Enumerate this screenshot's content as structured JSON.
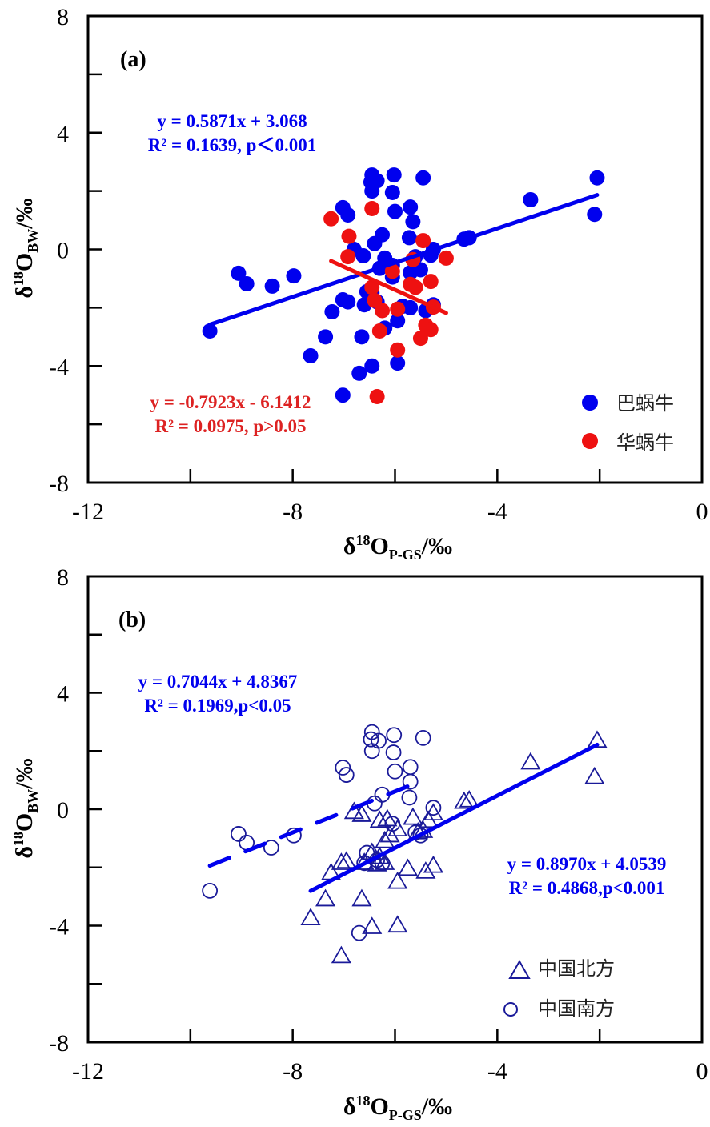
{
  "chart_data": [
    {
      "type": "scatter",
      "panel_label": "(a)",
      "xlabel": {
        "main": "δ",
        "sup": "18",
        "mid": "O",
        "sub": "P-GS",
        "tail": "/‰"
      },
      "ylabel": {
        "main": "δ",
        "sup": "18",
        "mid": "O",
        "sub": "BW",
        "tail": "/‰"
      },
      "xlim": [
        -12,
        0
      ],
      "ylim": [
        -8,
        8
      ],
      "xticks": [
        "-12",
        "-8",
        "-4",
        "0"
      ],
      "xtick_values": [
        -12,
        -8,
        -4,
        0
      ],
      "yticks": [
        "8",
        "4",
        "0",
        "-4",
        "-8"
      ],
      "ytick_values": [
        8,
        4,
        0,
        -4,
        -8
      ],
      "legend_position": "bottom-right",
      "series": [
        {
          "name": "巴蜗牛",
          "color": "#0000ee",
          "marker": "filled-circle",
          "points": [
            [
              -9.62,
              -2.8
            ],
            [
              -9.06,
              -0.82
            ],
            [
              -8.9,
              -1.18
            ],
            [
              -8.4,
              -1.26
            ],
            [
              -7.98,
              -0.91
            ],
            [
              -7.65,
              -3.65
            ],
            [
              -7.36,
              -3.0
            ],
            [
              -7.23,
              -2.14
            ],
            [
              -7.02,
              -1.73
            ],
            [
              -6.92,
              -1.8
            ],
            [
              -7.02,
              -5.0
            ],
            [
              -7.02,
              1.43
            ],
            [
              -6.92,
              1.18
            ],
            [
              -6.8,
              0.0
            ],
            [
              -6.62,
              -0.22
            ],
            [
              -6.45,
              2.55
            ],
            [
              -6.47,
              2.3
            ],
            [
              -6.35,
              2.35
            ],
            [
              -6.02,
              2.55
            ],
            [
              -5.45,
              2.45
            ],
            [
              -6.45,
              2.0
            ],
            [
              -6.05,
              1.95
            ],
            [
              -5.7,
              1.45
            ],
            [
              -6.0,
              1.3
            ],
            [
              -5.65,
              0.95
            ],
            [
              -5.72,
              0.4
            ],
            [
              -6.25,
              0.5
            ],
            [
              -6.4,
              0.2
            ],
            [
              -6.2,
              -0.3
            ],
            [
              -6.05,
              -0.55
            ],
            [
              -5.6,
              -0.25
            ],
            [
              -5.25,
              0.0
            ],
            [
              -5.3,
              -0.2
            ],
            [
              -5.5,
              -0.7
            ],
            [
              -5.7,
              -0.8
            ],
            [
              -6.05,
              -0.95
            ],
            [
              -6.3,
              -0.65
            ],
            [
              -6.55,
              -1.45
            ],
            [
              -6.45,
              -1.5
            ],
            [
              -6.35,
              -1.8
            ],
            [
              -6.6,
              -1.9
            ],
            [
              -5.85,
              -1.95
            ],
            [
              -5.7,
              -2.0
            ],
            [
              -5.4,
              -2.1
            ],
            [
              -5.25,
              -1.9
            ],
            [
              -5.95,
              -2.45
            ],
            [
              -6.65,
              -3.0
            ],
            [
              -6.2,
              -2.7
            ],
            [
              -6.7,
              -4.25
            ],
            [
              -6.45,
              -4.0
            ],
            [
              -5.95,
              -3.9
            ],
            [
              -4.65,
              0.35
            ],
            [
              -4.55,
              0.4
            ],
            [
              -3.35,
              1.7
            ],
            [
              -2.05,
              2.45
            ],
            [
              -2.1,
              1.2
            ]
          ]
        },
        {
          "name": "华蜗牛",
          "color": "#ee1111",
          "marker": "filled-circle",
          "points": [
            [
              -7.25,
              1.05
            ],
            [
              -6.45,
              1.4
            ],
            [
              -6.9,
              0.45
            ],
            [
              -6.92,
              -0.25
            ],
            [
              -5.45,
              0.3
            ],
            [
              -5.0,
              -0.3
            ],
            [
              -5.65,
              -0.35
            ],
            [
              -6.05,
              -0.75
            ],
            [
              -5.3,
              -1.1
            ],
            [
              -5.7,
              -1.2
            ],
            [
              -5.6,
              -1.3
            ],
            [
              -6.45,
              -1.3
            ],
            [
              -6.4,
              -1.75
            ],
            [
              -6.25,
              -2.1
            ],
            [
              -5.95,
              -2.05
            ],
            [
              -5.25,
              -1.98
            ],
            [
              -5.4,
              -2.6
            ],
            [
              -5.3,
              -2.75
            ],
            [
              -5.5,
              -3.05
            ],
            [
              -6.3,
              -2.8
            ],
            [
              -5.95,
              -3.45
            ],
            [
              -6.35,
              -5.05
            ]
          ]
        }
      ],
      "fits": [
        {
          "series": "巴蜗牛",
          "color": "#0000ee",
          "style": "solid",
          "slope": 0.5871,
          "intercept": 3.068,
          "x_range": [
            -9.62,
            -2.05
          ],
          "label_line1": "y = 0.5871x + 3.068",
          "label_line2": "R² = 0.1639, p＜0.001"
        },
        {
          "series": "华蜗牛",
          "color": "#ee1111",
          "style": "solid",
          "slope": -0.7923,
          "intercept": -6.1412,
          "x_range": [
            -7.25,
            -5.0
          ],
          "label_line1": "y = -0.7923x - 6.1412",
          "label_line2": "R² = 0.0975, p>0.05"
        }
      ]
    },
    {
      "type": "scatter",
      "panel_label": "(b)",
      "xlabel": {
        "main": "δ",
        "sup": "18",
        "mid": "O",
        "sub": "P-GS",
        "tail": "/‰"
      },
      "ylabel": {
        "main": "δ",
        "sup": "18",
        "mid": "O",
        "sub": "BW",
        "tail": "/‰"
      },
      "xlim": [
        -12,
        0
      ],
      "ylim": [
        -8,
        8
      ],
      "xticks": [
        "-12",
        "-8",
        "-4",
        "0"
      ],
      "xtick_values": [
        -12,
        -8,
        -4,
        0
      ],
      "yticks": [
        "8",
        "4",
        "0",
        "-4",
        "-8"
      ],
      "ytick_values": [
        8,
        4,
        0,
        -4,
        -8
      ],
      "legend_position": "bottom-right",
      "series": [
        {
          "name": "中国北方",
          "color": "#1a1a99",
          "marker": "open-triangle",
          "points": [
            [
              -7.65,
              -3.7
            ],
            [
              -7.36,
              -3.05
            ],
            [
              -7.25,
              -2.15
            ],
            [
              -7.05,
              -1.8
            ],
            [
              -6.95,
              -1.75
            ],
            [
              -7.05,
              -5.0
            ],
            [
              -6.8,
              -0.05
            ],
            [
              -6.65,
              -0.15
            ],
            [
              -6.65,
              -3.05
            ],
            [
              -6.45,
              -4.0
            ],
            [
              -5.95,
              -3.95
            ],
            [
              -6.45,
              -1.45
            ],
            [
              -6.3,
              -1.6
            ],
            [
              -6.35,
              -1.85
            ],
            [
              -6.2,
              -1.8
            ],
            [
              -6.3,
              -0.35
            ],
            [
              -6.15,
              -0.3
            ],
            [
              -6.1,
              -0.85
            ],
            [
              -6.2,
              -1.05
            ],
            [
              -5.95,
              -0.65
            ],
            [
              -5.65,
              -0.25
            ],
            [
              -5.35,
              -0.35
            ],
            [
              -5.25,
              -0.1
            ],
            [
              -5.55,
              -0.75
            ],
            [
              -5.45,
              -0.7
            ],
            [
              -5.95,
              -2.45
            ],
            [
              -5.75,
              -2.0
            ],
            [
              -5.4,
              -2.1
            ],
            [
              -5.25,
              -1.9
            ],
            [
              -6.6,
              -1.8
            ],
            [
              -4.65,
              0.3
            ],
            [
              -4.55,
              0.35
            ],
            [
              -3.35,
              1.65
            ],
            [
              -2.05,
              2.4
            ],
            [
              -2.1,
              1.15
            ]
          ]
        },
        {
          "name": "中国南方",
          "color": "#1a1a99",
          "marker": "open-circle",
          "points": [
            [
              -9.62,
              -2.8
            ],
            [
              -9.06,
              -0.85
            ],
            [
              -8.9,
              -1.15
            ],
            [
              -8.42,
              -1.32
            ],
            [
              -7.98,
              -0.9
            ],
            [
              -7.02,
              1.43
            ],
            [
              -6.95,
              1.18
            ],
            [
              -6.45,
              2.65
            ],
            [
              -6.47,
              2.4
            ],
            [
              -6.32,
              2.35
            ],
            [
              -6.02,
              2.55
            ],
            [
              -5.45,
              2.45
            ],
            [
              -6.45,
              2.0
            ],
            [
              -6.03,
              1.95
            ],
            [
              -5.7,
              1.45
            ],
            [
              -6.0,
              1.3
            ],
            [
              -5.7,
              0.95
            ],
            [
              -5.72,
              0.4
            ],
            [
              -6.25,
              0.5
            ],
            [
              -6.4,
              0.2
            ],
            [
              -6.05,
              -0.5
            ],
            [
              -5.6,
              -0.8
            ],
            [
              -5.25,
              0.05
            ],
            [
              -5.5,
              -0.9
            ],
            [
              -6.55,
              -1.5
            ],
            [
              -6.35,
              -1.75
            ],
            [
              -6.6,
              -1.85
            ],
            [
              -6.25,
              -1.85
            ],
            [
              -6.7,
              -4.25
            ]
          ]
        }
      ],
      "fits": [
        {
          "series": "中国南方",
          "color": "#0000ee",
          "style": "dashed",
          "slope": 0.7044,
          "intercept": 4.8367,
          "x_range": [
            -9.62,
            -5.65
          ],
          "label_line1": "y = 0.7044x + 4.8367",
          "label_line2": "R² = 0.1969,p<0.05"
        },
        {
          "series": "中国北方",
          "color": "#0000ee",
          "style": "solid",
          "slope": 0.897,
          "intercept": 4.0539,
          "x_range": [
            -7.65,
            -2.05
          ],
          "label_line1": "y = 0.8970x + 4.0539",
          "label_line2": "R² = 0.4868,p<0.001"
        }
      ]
    }
  ]
}
